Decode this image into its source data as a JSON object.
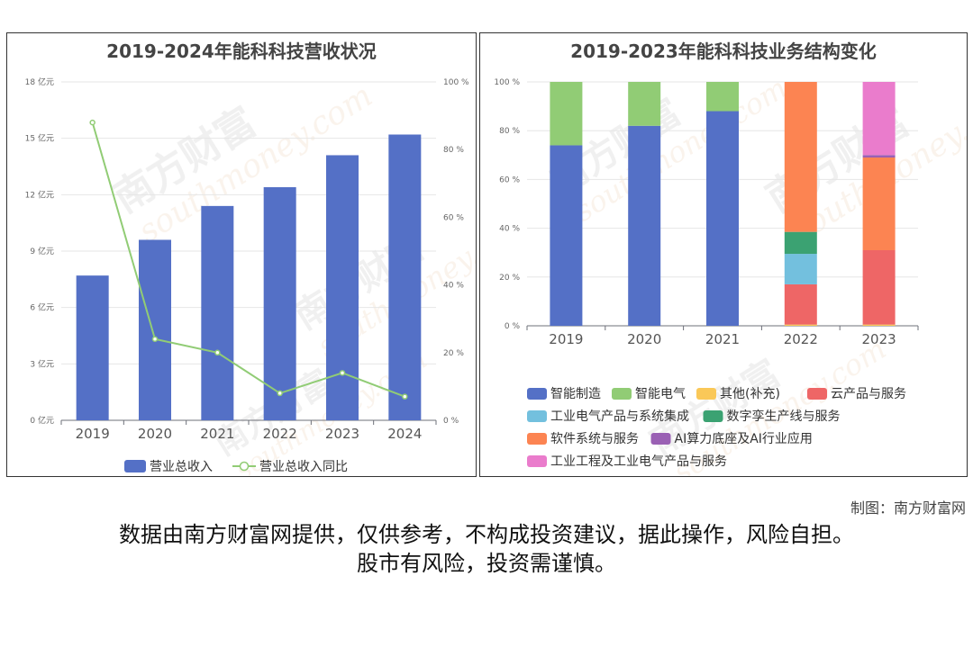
{
  "chart_data": [
    {
      "type": "bar",
      "title": "2019-2024年能科科技营收状况",
      "categories": [
        "2019",
        "2020",
        "2021",
        "2022",
        "2023",
        "2024"
      ],
      "series": [
        {
          "name": "营业总收入",
          "type": "bar",
          "axis": "left",
          "values": [
            7.7,
            9.6,
            11.4,
            12.4,
            14.1,
            15.2
          ]
        },
        {
          "name": "营业总收入同比",
          "type": "line",
          "axis": "right",
          "values": [
            88,
            24,
            20,
            8,
            14,
            7
          ]
        }
      ],
      "y_left": {
        "ylim": [
          0,
          18
        ],
        "ticks": [
          "0 亿元",
          "3 亿元",
          "6 亿元",
          "9 亿元",
          "12 亿元",
          "15 亿元",
          "18 亿元"
        ]
      },
      "y_right": {
        "ylim": [
          0,
          100
        ],
        "ticks": [
          "0 %",
          "20 %",
          "40 %",
          "60 %",
          "80 %",
          "100 %"
        ]
      },
      "grid": true,
      "legend": "bottom",
      "colors": {
        "bar": "#5470c6",
        "line": "#91cc75"
      }
    },
    {
      "type": "bar",
      "stacked": true,
      "title": "2019-2023年能科科技业务结构变化",
      "categories": [
        "2019",
        "2020",
        "2021",
        "2022",
        "2023"
      ],
      "ylim": [
        0,
        100
      ],
      "y_ticks": [
        "0 %",
        "20 %",
        "40 %",
        "60 %",
        "80 %",
        "100 %"
      ],
      "series": [
        {
          "name": "智能制造",
          "color": "#5470c6",
          "values": [
            74,
            82,
            88,
            0,
            0
          ]
        },
        {
          "name": "智能电气",
          "color": "#91cc75",
          "values": [
            26,
            18,
            12,
            0,
            0
          ]
        },
        {
          "name": "其他(补充)",
          "color": "#fac858",
          "values": [
            0,
            0,
            0,
            0.5,
            0.5
          ]
        },
        {
          "name": "云产品与服务",
          "color": "#ee6666",
          "values": [
            0,
            0,
            0,
            16.5,
            30.5
          ]
        },
        {
          "name": "工业电气产品与系统集成",
          "color": "#73c0de",
          "values": [
            0,
            0,
            0,
            12.5,
            0
          ]
        },
        {
          "name": "数字孪生产线与服务",
          "color": "#3ba272",
          "values": [
            0,
            0,
            0,
            9,
            0
          ]
        },
        {
          "name": "软件系统与服务",
          "color": "#fc8452",
          "values": [
            0,
            0,
            0,
            61.5,
            38
          ]
        },
        {
          "name": "AI算力底座及AI行业应用",
          "color": "#9a60b4",
          "values": [
            0,
            0,
            0,
            0,
            1
          ]
        },
        {
          "name": "工业工程及工业电气产品与服务",
          "color": "#ea7ccc",
          "values": [
            0,
            0,
            0,
            0,
            30
          ]
        }
      ],
      "grid": true,
      "legend": "bottom"
    }
  ],
  "credit": "制图：南方财富网",
  "disclaimer": {
    "line1": "数据由南方财富网提供，仅供参考，不构成投资建议，据此操作，风险自担。",
    "line2": "股市有风险，投资需谨慎。"
  },
  "watermark": {
    "brand": "南方财富",
    "url": "southmoney.com"
  }
}
